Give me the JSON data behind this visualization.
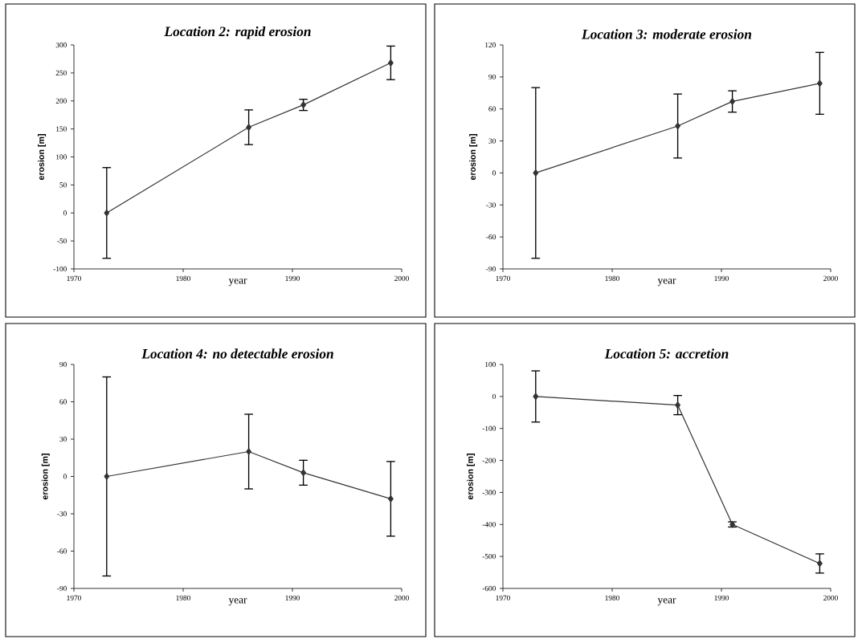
{
  "chart_data": [
    {
      "type": "line",
      "title": "Location 2: rapid erosion",
      "xlabel": "year",
      "ylabel": "erosion [m]",
      "x": [
        1973,
        1986,
        1991,
        1999
      ],
      "values": [
        0,
        153,
        193,
        268
      ],
      "errors": [
        81,
        31,
        10,
        30
      ],
      "color": "#333333",
      "marker": "diamond",
      "line_style": "solid",
      "grid": false,
      "xlim": [
        1970,
        2000
      ],
      "xticks": [
        1970,
        1980,
        1990,
        2000
      ],
      "ylim": [
        -100,
        300
      ],
      "yticks": [
        -100,
        -50,
        0,
        50,
        100,
        150,
        200,
        250,
        300
      ]
    },
    {
      "type": "line",
      "title": "Location 3: moderate erosion",
      "xlabel": "year",
      "ylabel": "erosion [m]",
      "x": [
        1973,
        1986,
        1991,
        1999
      ],
      "values": [
        0,
        44,
        67,
        84
      ],
      "errors": [
        80,
        30,
        10,
        29
      ],
      "color": "#333333",
      "marker": "diamond",
      "line_style": "solid",
      "grid": false,
      "xlim": [
        1970,
        2000
      ],
      "xticks": [
        1970,
        1980,
        1990,
        2000
      ],
      "ylim": [
        -90,
        120
      ],
      "yticks": [
        -90,
        -60,
        -30,
        0,
        30,
        60,
        90,
        120
      ]
    },
    {
      "type": "line",
      "title": "Location 4: no detectable erosion",
      "xlabel": "year",
      "ylabel": "erosion [m]",
      "x": [
        1973,
        1986,
        1991,
        1999
      ],
      "values": [
        0,
        20,
        3,
        -18
      ],
      "errors": [
        80,
        30,
        10,
        30
      ],
      "color": "#333333",
      "marker": "diamond",
      "line_style": "solid",
      "grid": false,
      "xlim": [
        1970,
        2000
      ],
      "xticks": [
        1970,
        1980,
        1990,
        2000
      ],
      "ylim": [
        -90,
        90
      ],
      "yticks": [
        -90,
        -60,
        -30,
        0,
        30,
        60,
        90
      ]
    },
    {
      "type": "line",
      "title": "Location 5: accretion",
      "xlabel": "year",
      "ylabel": "erosion [m]",
      "x": [
        1973,
        1986,
        1991,
        1999
      ],
      "values": [
        0,
        -27,
        -400,
        -522
      ],
      "errors": [
        80,
        30,
        8,
        30
      ],
      "color": "#333333",
      "marker": "diamond",
      "line_style": "solid",
      "grid": false,
      "xlim": [
        1970,
        2000
      ],
      "xticks": [
        1970,
        1980,
        1990,
        2000
      ],
      "ylim": [
        -600,
        100
      ],
      "yticks": [
        -600,
        -500,
        -400,
        -300,
        -200,
        -100,
        0,
        100
      ]
    }
  ]
}
